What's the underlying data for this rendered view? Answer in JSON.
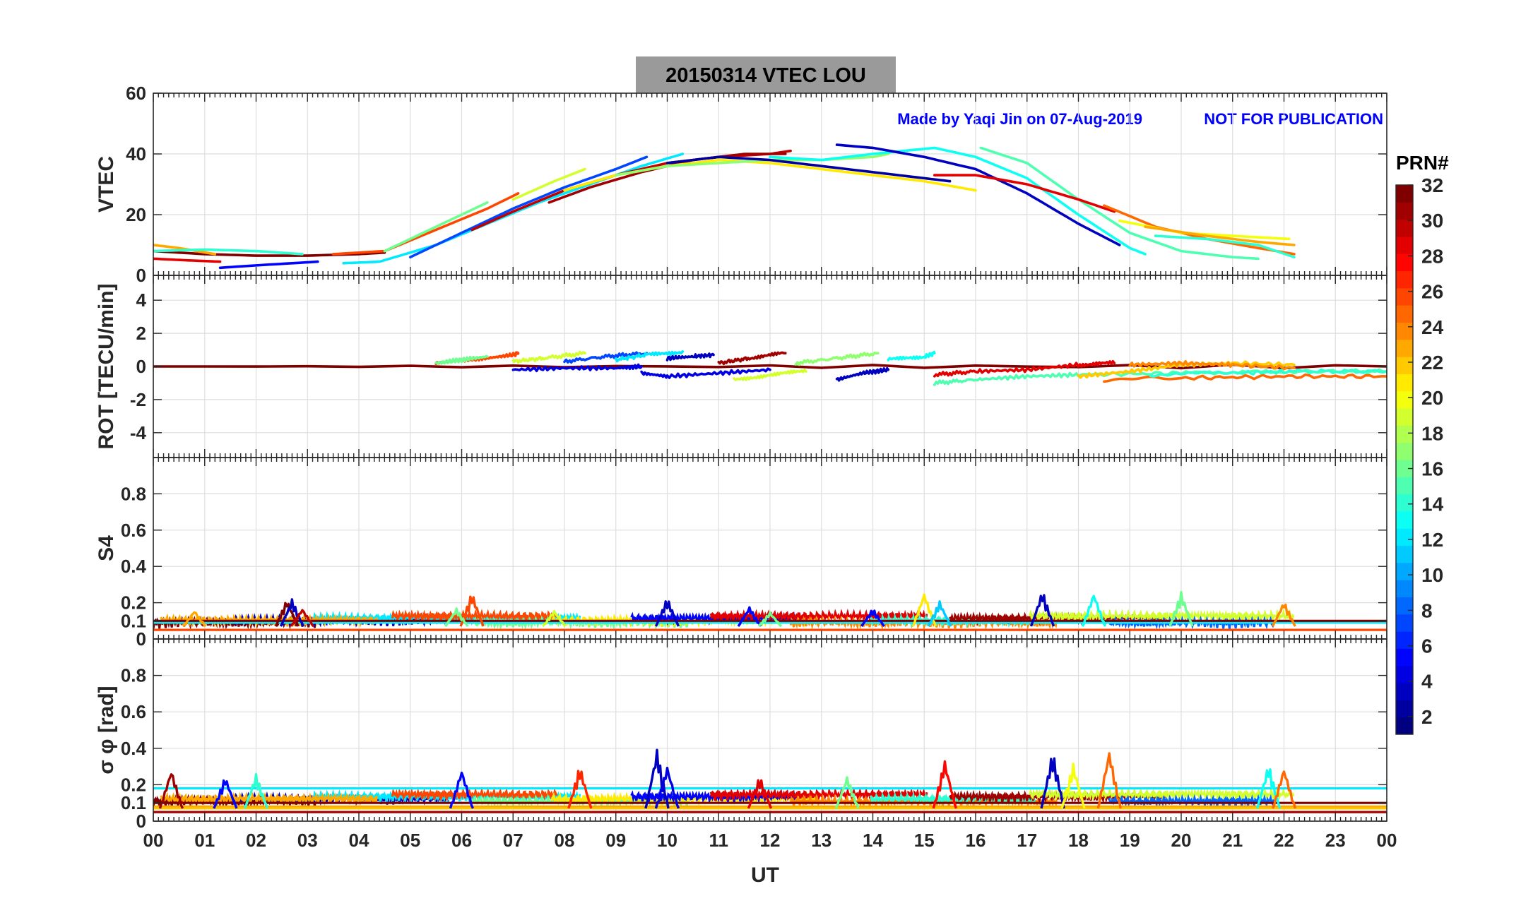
{
  "figure": {
    "title": "20150314    VTEC  LOU",
    "annotation_left": "Made by Yaqi Jin on 07-Aug-2019",
    "annotation_right": "NOT FOR PUBLICATION",
    "xlabel": "UT",
    "x_ticks": [
      "00",
      "01",
      "02",
      "03",
      "04",
      "05",
      "06",
      "07",
      "08",
      "09",
      "10",
      "11",
      "12",
      "13",
      "14",
      "15",
      "16",
      "17",
      "18",
      "19",
      "20",
      "21",
      "22",
      "23",
      "00"
    ],
    "colorbar": {
      "title": "PRN#",
      "ticks": [
        "2",
        "4",
        "6",
        "8",
        "10",
        "12",
        "14",
        "16",
        "18",
        "20",
        "22",
        "24",
        "26",
        "28",
        "30",
        "32"
      ],
      "range": [
        1,
        32
      ]
    }
  },
  "chart_data": [
    {
      "type": "line",
      "id": "vtec",
      "ylabel": "VTEC",
      "ylim": [
        0,
        60
      ],
      "yticks": [
        "0",
        "20",
        "40",
        "60"
      ],
      "xlim": [
        0,
        24
      ],
      "series": [
        {
          "prn": 32,
          "x": [
            0,
            1,
            2,
            3,
            4,
            4.5
          ],
          "y": [
            8,
            7,
            6.5,
            6.5,
            7,
            7.5
          ]
        },
        {
          "prn": 23,
          "x": [
            0,
            0.5,
            1.2
          ],
          "y": [
            10,
            9,
            7
          ]
        },
        {
          "prn": 29,
          "x": [
            0,
            0.6,
            1.3
          ],
          "y": [
            5.5,
            5,
            4.5
          ]
        },
        {
          "prn": 14,
          "x": [
            0,
            1,
            2,
            2.9
          ],
          "y": [
            8,
            8.5,
            8,
            7
          ]
        },
        {
          "prn": 5,
          "x": [
            1.3,
            2.2,
            3.2
          ],
          "y": [
            2.5,
            3.5,
            4.5
          ]
        },
        {
          "prn": 12,
          "x": [
            3.7,
            4.4,
            5.5,
            6.5,
            7.5,
            8.5,
            9.5,
            10.3
          ],
          "y": [
            4,
            4.5,
            10,
            17,
            24,
            30,
            36,
            40
          ]
        },
        {
          "prn": 26,
          "x": [
            3.5,
            4.5,
            5.5,
            6.5,
            7.1
          ],
          "y": [
            7,
            8,
            15,
            22,
            27
          ]
        },
        {
          "prn": 16,
          "x": [
            4.5,
            5.5,
            6.5
          ],
          "y": [
            8,
            16,
            24
          ]
        },
        {
          "prn": 7,
          "x": [
            5,
            6,
            7,
            8,
            9,
            9.6
          ],
          "y": [
            6,
            14,
            22,
            29,
            35,
            39
          ]
        },
        {
          "prn": 30,
          "x": [
            6.2,
            7,
            8,
            9,
            10,
            11,
            12,
            12.4
          ],
          "y": [
            15,
            21,
            28,
            33,
            37,
            39,
            40,
            41
          ]
        },
        {
          "prn": 19,
          "x": [
            7,
            7.8,
            8.4
          ],
          "y": [
            25,
            31,
            35
          ]
        },
        {
          "prn": 31,
          "x": [
            7.7,
            8.5,
            9.5,
            10.5,
            11.5,
            12.3
          ],
          "y": [
            24,
            29,
            34,
            38,
            40,
            40
          ]
        },
        {
          "prn": 21,
          "x": [
            8,
            9,
            10,
            11,
            12,
            13,
            14,
            15,
            16
          ],
          "y": [
            28,
            33,
            36,
            38,
            37,
            35,
            33,
            31,
            28
          ]
        },
        {
          "prn": 17,
          "x": [
            9,
            10,
            11,
            12,
            13,
            14,
            14.3
          ],
          "y": [
            33,
            36,
            37,
            38,
            38,
            39,
            40
          ]
        },
        {
          "prn": 2,
          "x": [
            10,
            11,
            12,
            13,
            14,
            15,
            15.5
          ],
          "y": [
            37,
            39,
            38,
            36,
            34,
            32,
            31
          ]
        },
        {
          "prn": 13,
          "x": [
            12,
            13,
            14,
            15.2,
            16,
            17,
            18,
            19,
            19.3
          ],
          "y": [
            39,
            38,
            40,
            42,
            39,
            32,
            20,
            9,
            7
          ]
        },
        {
          "prn": 3,
          "x": [
            13.3,
            14,
            15,
            16,
            17,
            18,
            18.8
          ],
          "y": [
            43,
            42,
            39,
            35,
            27,
            17,
            10
          ]
        },
        {
          "prn": 15,
          "x": [
            16.1,
            17,
            18,
            19,
            20,
            21,
            21.5
          ],
          "y": [
            42,
            37,
            25,
            14,
            8,
            6,
            5.5
          ]
        },
        {
          "prn": 29,
          "x": [
            15.2,
            16,
            17,
            18,
            18.7
          ],
          "y": [
            33,
            33,
            30,
            25,
            21
          ]
        },
        {
          "prn": 25,
          "x": [
            18.5,
            19.5,
            20.5,
            21.5,
            22.2
          ],
          "y": [
            23,
            16,
            12,
            9,
            7
          ]
        },
        {
          "prn": 20,
          "x": [
            18.8,
            20,
            21,
            22.1
          ],
          "y": [
            18,
            14,
            13,
            12
          ]
        },
        {
          "prn": 23,
          "x": [
            19.3,
            20.5,
            21.5,
            22.2
          ],
          "y": [
            16,
            13,
            11,
            10
          ]
        },
        {
          "prn": 14,
          "x": [
            19.5,
            20.5,
            21.5,
            22.2
          ],
          "y": [
            13,
            12,
            10,
            6
          ]
        }
      ]
    },
    {
      "type": "line",
      "id": "rot",
      "ylabel": "ROT [TECU/min]",
      "ylim": [
        -5.5,
        5.5
      ],
      "yticks": [
        "-4",
        "-2",
        "0",
        "2",
        "4"
      ],
      "xlim": [
        0,
        24
      ],
      "series": [
        {
          "prn": 32,
          "x": [
            0,
            24
          ],
          "y": [
            0,
            0
          ]
        },
        {
          "prn": 26,
          "x": [
            5.5,
            6,
            6.5,
            7,
            7.1
          ],
          "y": [
            0.2,
            0.4,
            0.5,
            0.7,
            0.8
          ]
        },
        {
          "prn": 16,
          "x": [
            5.5,
            6,
            6.5
          ],
          "y": [
            0.2,
            0.4,
            0.6
          ]
        },
        {
          "prn": 19,
          "x": [
            7,
            7.6,
            8.4
          ],
          "y": [
            0.3,
            0.5,
            0.8
          ]
        },
        {
          "prn": 7,
          "x": [
            8,
            8.8,
            9.6
          ],
          "y": [
            0.3,
            0.6,
            0.8
          ]
        },
        {
          "prn": 12,
          "x": [
            9,
            9.6,
            10.3
          ],
          "y": [
            0.4,
            0.7,
            0.9
          ]
        },
        {
          "prn": 3,
          "x": [
            10,
            10.5,
            10.9
          ],
          "y": [
            0.5,
            0.6,
            0.7
          ]
        },
        {
          "prn": 31,
          "x": [
            11,
            11.6,
            12.3
          ],
          "y": [
            0.2,
            0.5,
            0.8
          ]
        },
        {
          "prn": 4,
          "x": [
            7,
            8,
            9,
            9.5
          ],
          "y": [
            -0.2,
            -0.1,
            -0.1,
            0
          ]
        },
        {
          "prn": 4,
          "x": [
            9.5,
            10,
            11,
            12
          ],
          "y": [
            -0.4,
            -0.6,
            -0.4,
            -0.2
          ]
        },
        {
          "prn": 19,
          "x": [
            11.3,
            12,
            12.7
          ],
          "y": [
            -0.8,
            -0.5,
            -0.3
          ]
        },
        {
          "prn": 17,
          "x": [
            12.5,
            13.3,
            14.1
          ],
          "y": [
            0.2,
            0.5,
            0.8
          ]
        },
        {
          "prn": 3,
          "x": [
            13.3,
            13.8,
            14.3
          ],
          "y": [
            -0.8,
            -0.4,
            -0.2
          ]
        },
        {
          "prn": 13,
          "x": [
            14.3,
            15,
            15.2
          ],
          "y": [
            0.4,
            0.6,
            0.8
          ]
        },
        {
          "prn": 29,
          "x": [
            15.2,
            16,
            17,
            18,
            18.7
          ],
          "y": [
            -0.5,
            -0.3,
            -0.2,
            0.1,
            0.2
          ]
        },
        {
          "prn": 15,
          "x": [
            15.2,
            16,
            17,
            18,
            20,
            22.2,
            24
          ],
          "y": [
            -1,
            -0.8,
            -0.6,
            -0.5,
            -0.4,
            -0.3,
            -0.3
          ]
        },
        {
          "prn": 25,
          "x": [
            18.5,
            20,
            22,
            24
          ],
          "y": [
            -0.8,
            -0.7,
            -0.6,
            -0.6
          ]
        },
        {
          "prn": 22,
          "x": [
            18,
            19,
            20,
            21,
            22.2
          ],
          "y": [
            -0.6,
            -0.3,
            0.1,
            0.2,
            0.1
          ]
        },
        {
          "prn": 24,
          "x": [
            19,
            20,
            21,
            22.2
          ],
          "y": [
            0.1,
            0.2,
            0.1,
            -0.1
          ]
        },
        {
          "prn": 14,
          "x": [
            19.4,
            21,
            22.2,
            24
          ],
          "y": [
            -0.5,
            -0.4,
            -0.3,
            -0.3
          ]
        }
      ]
    },
    {
      "type": "line",
      "id": "s4",
      "ylabel": "S4",
      "ylim": [
        0,
        1
      ],
      "yticks": [
        "0",
        "0.1",
        "0.2",
        "0.4",
        "0.6",
        "0.8"
      ],
      "xlim": [
        0,
        24
      ],
      "baselines": [
        {
          "prn": 12,
          "y": 0.09
        },
        {
          "prn": 32,
          "y": 0.1
        },
        {
          "prn": 26,
          "y": 0.05
        }
      ],
      "peaks": [
        {
          "prn": 23,
          "x": 0.8,
          "y": 0.16
        },
        {
          "prn": 32,
          "x": 2.6,
          "y": 0.22
        },
        {
          "prn": 3,
          "x": 2.7,
          "y": 0.22
        },
        {
          "prn": 30,
          "x": 2.9,
          "y": 0.17
        },
        {
          "prn": 26,
          "x": 6.2,
          "y": 0.26
        },
        {
          "prn": 16,
          "x": 5.9,
          "y": 0.17
        },
        {
          "prn": 19,
          "x": 7.8,
          "y": 0.16
        },
        {
          "prn": 3,
          "x": 10,
          "y": 0.23
        },
        {
          "prn": 5,
          "x": 11.6,
          "y": 0.18
        },
        {
          "prn": 16,
          "x": 12,
          "y": 0.15
        },
        {
          "prn": 5,
          "x": 14,
          "y": 0.17
        },
        {
          "prn": 21,
          "x": 15,
          "y": 0.26
        },
        {
          "prn": 11,
          "x": 15.3,
          "y": 0.21
        },
        {
          "prn": 3,
          "x": 17.3,
          "y": 0.27
        },
        {
          "prn": 13,
          "x": 18.3,
          "y": 0.26
        },
        {
          "prn": 16,
          "x": 20,
          "y": 0.26
        },
        {
          "prn": 24,
          "x": 22,
          "y": 0.21
        }
      ]
    },
    {
      "type": "line",
      "id": "sigma_phi",
      "ylabel": "σ φ [rad]",
      "ylim": [
        0,
        1
      ],
      "yticks": [
        "0",
        "0.1",
        "0.2",
        "0.4",
        "0.6",
        "0.8"
      ],
      "xlim": [
        0,
        24
      ],
      "baselines": [
        {
          "prn": 32,
          "y": 0.1
        },
        {
          "prn": 23,
          "y": 0.08
        },
        {
          "prn": 12,
          "y": 0.18
        },
        {
          "prn": 22,
          "y": 0.07
        },
        {
          "prn": 31,
          "y": 0.05
        }
      ],
      "peaks": [
        {
          "prn": 31,
          "x": 0.35,
          "y": 0.29
        },
        {
          "prn": 5,
          "x": 1.4,
          "y": 0.25
        },
        {
          "prn": 14,
          "x": 2,
          "y": 0.26
        },
        {
          "prn": 5,
          "x": 6,
          "y": 0.29
        },
        {
          "prn": 27,
          "x": 8.3,
          "y": 0.31
        },
        {
          "prn": 3,
          "x": 9.8,
          "y": 0.4
        },
        {
          "prn": 4,
          "x": 10,
          "y": 0.31
        },
        {
          "prn": 29,
          "x": 11.8,
          "y": 0.25
        },
        {
          "prn": 16,
          "x": 13.5,
          "y": 0.25
        },
        {
          "prn": 28,
          "x": 15.4,
          "y": 0.34
        },
        {
          "prn": 3,
          "x": 17.5,
          "y": 0.39
        },
        {
          "prn": 25,
          "x": 18.6,
          "y": 0.4
        },
        {
          "prn": 20,
          "x": 17.9,
          "y": 0.32
        },
        {
          "prn": 13,
          "x": 21.7,
          "y": 0.32
        },
        {
          "prn": 25,
          "x": 22,
          "y": 0.3
        }
      ]
    }
  ]
}
